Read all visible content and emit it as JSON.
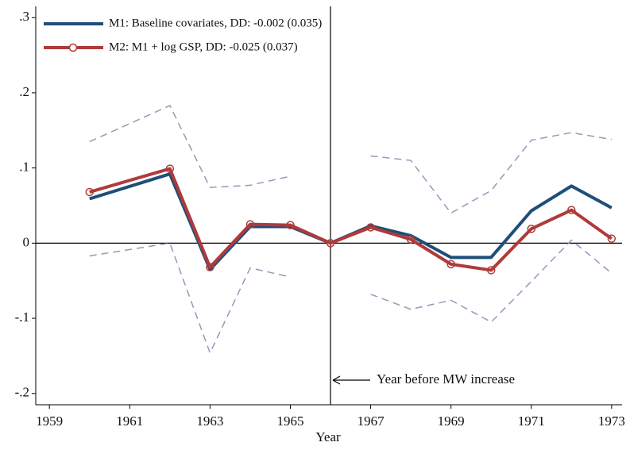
{
  "chart_data": {
    "type": "line",
    "x_label": "Year",
    "x": [
      1960,
      1962,
      1963,
      1964,
      1965,
      1966,
      1967,
      1968,
      1969,
      1970,
      1971,
      1972,
      1973
    ],
    "series": [
      {
        "name": "M1: Baseline covariates, DD: -0.002 (0.035)",
        "color": "#1f4e79",
        "marker": "none",
        "values": [
          0.059,
          0.092,
          -0.035,
          0.022,
          0.022,
          0,
          0.023,
          0.01,
          -0.019,
          -0.019,
          0.043,
          0.076,
          0.047
        ]
      },
      {
        "name": "M2: M1 + log GSP, DD: -0.025 (0.037)",
        "color": "#b03a3a",
        "marker": "circle",
        "values": [
          0.068,
          0.099,
          -0.032,
          0.025,
          0.024,
          0,
          0.021,
          0.005,
          -0.028,
          -0.036,
          0.019,
          0.044,
          0.006
        ]
      }
    ],
    "ci_color": "#8e9db8",
    "ci_upper": [
      0.135,
      0.183,
      0.074,
      0.077,
      0.089,
      null,
      0.116,
      0.11,
      0.04,
      0.07,
      0.137,
      0.147,
      0.138
    ],
    "ci_lower": [
      -0.017,
      0.0,
      -0.146,
      -0.033,
      -0.045,
      null,
      -0.068,
      -0.088,
      -0.076,
      -0.105,
      -0.051,
      0.004,
      -0.04
    ],
    "xlim": [
      1958.66,
      1973.26
    ],
    "ylim": [
      -0.215,
      0.315
    ],
    "xticks": [
      1959,
      1961,
      1963,
      1965,
      1967,
      1969,
      1971,
      1973
    ],
    "yticks": [
      {
        "value": 0.3,
        "label": ".3"
      },
      {
        "value": 0.2,
        "label": ".2"
      },
      {
        "value": 0.1,
        "label": ".1"
      },
      0,
      {
        "value": -0.1,
        "label": "-.1"
      },
      {
        "value": -0.2,
        "label": "-.2"
      }
    ],
    "hline": 0,
    "vline": 1966,
    "annotation": "Year before MW increase",
    "legend": "top-left"
  }
}
